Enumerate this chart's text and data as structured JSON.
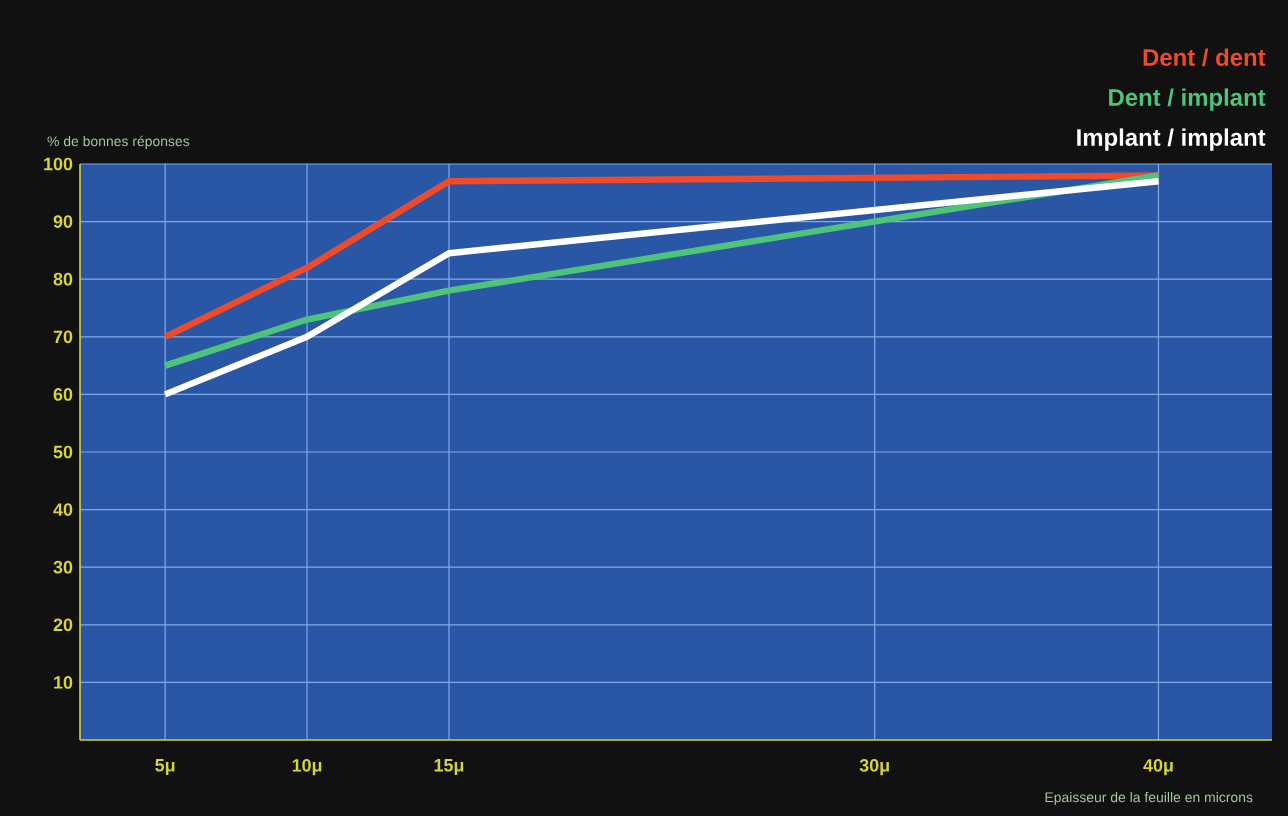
{
  "chart_data": {
    "type": "line",
    "ylabel": "% de bonnes réponses",
    "xlabel": "Epaisseur de la feuille en microns",
    "x": [
      5,
      10,
      15,
      40
    ],
    "series": [
      {
        "name": "Dent / dent",
        "color": "#f04a2a",
        "values": [
          70,
          82,
          97,
          98
        ]
      },
      {
        "name": "Dent / implant",
        "color": "#4dc47a",
        "values": [
          65,
          73,
          78,
          98
        ]
      },
      {
        "name": "Implant / implant",
        "color": "#ffffff",
        "values": [
          60,
          70,
          84.5,
          97
        ]
      }
    ],
    "xlim": [
      2,
      44
    ],
    "ylim": [
      0,
      100
    ],
    "xticks": [
      {
        "value": 5,
        "label": "5μ"
      },
      {
        "value": 10,
        "label": "10μ"
      },
      {
        "value": 15,
        "label": "15μ"
      },
      {
        "value": 30,
        "label": "30μ"
      },
      {
        "value": 40,
        "label": "40μ"
      }
    ],
    "yticks": [
      10,
      20,
      30,
      40,
      50,
      60,
      70,
      80,
      90,
      100
    ],
    "grid": true,
    "legend": "top right",
    "marker": "none",
    "line_style": "solid"
  }
}
